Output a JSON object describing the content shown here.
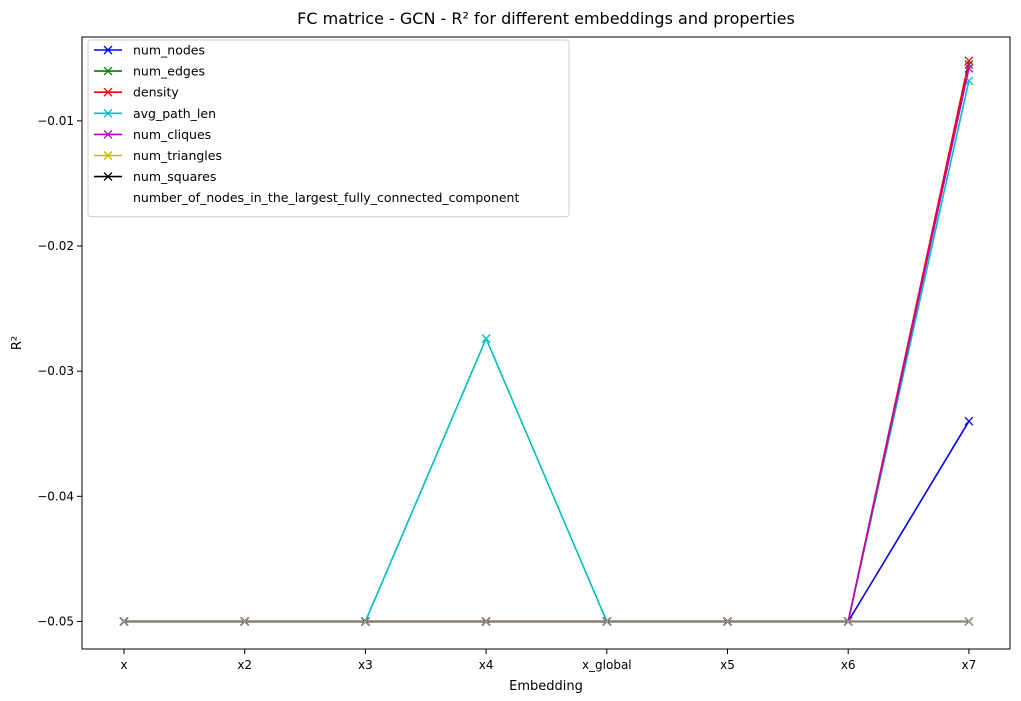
{
  "chart_data": {
    "type": "line",
    "title": "FC matrice - GCN - R² for different embeddings and properties",
    "xlabel": "Embedding",
    "ylabel": "R²",
    "categories": [
      "x",
      "x2",
      "x3",
      "x4",
      "x_global",
      "x5",
      "x6",
      "x7"
    ],
    "ylim": [
      -0.0522,
      -0.0033
    ],
    "yticks": [
      -0.05,
      -0.04,
      -0.03,
      -0.02,
      -0.01
    ],
    "ytick_labels": [
      "−0.05",
      "−0.04",
      "−0.03",
      "−0.02",
      "−0.01"
    ],
    "grid": false,
    "legend_position": "top-left",
    "marker": "x",
    "series": [
      {
        "name": "num_nodes",
        "color": "#0000ff",
        "values": [
          -0.05,
          -0.05,
          -0.05,
          -0.05,
          -0.05,
          -0.05,
          -0.05,
          -0.034
        ]
      },
      {
        "name": "num_edges",
        "color": "#008000",
        "values": [
          -0.05,
          -0.05,
          -0.05,
          -0.05,
          -0.05,
          -0.05,
          -0.05,
          -0.0055
        ]
      },
      {
        "name": "density",
        "color": "#ff0000",
        "values": [
          -0.05,
          -0.05,
          -0.05,
          -0.05,
          -0.05,
          -0.05,
          -0.05,
          -0.0052
        ]
      },
      {
        "name": "avg_path_len",
        "color": "#00bfbf",
        "values": [
          -0.05,
          -0.05,
          -0.05,
          -0.0274,
          -0.05,
          -0.05,
          -0.05,
          -0.0068
        ]
      },
      {
        "name": "num_cliques",
        "color": "#bf00bf",
        "values": [
          -0.05,
          -0.05,
          -0.05,
          -0.05,
          -0.05,
          -0.05,
          -0.05,
          -0.0058
        ]
      },
      {
        "name": "num_triangles",
        "color": "#bfbf00",
        "values": [
          -0.05,
          -0.05,
          -0.05,
          -0.05,
          -0.05,
          -0.05,
          -0.05,
          -0.05
        ]
      },
      {
        "name": "num_squares",
        "color": "#000000",
        "values": [
          -0.05,
          -0.05,
          -0.05,
          -0.05,
          -0.05,
          -0.05,
          -0.05,
          -0.05
        ]
      },
      {
        "name": "number_of_nodes_in_the_largest_fully_connected_component",
        "color": "#ffffff",
        "values": [
          -0.05,
          -0.05,
          -0.05,
          -0.05,
          -0.05,
          -0.05,
          -0.05,
          -0.05
        ]
      }
    ]
  }
}
